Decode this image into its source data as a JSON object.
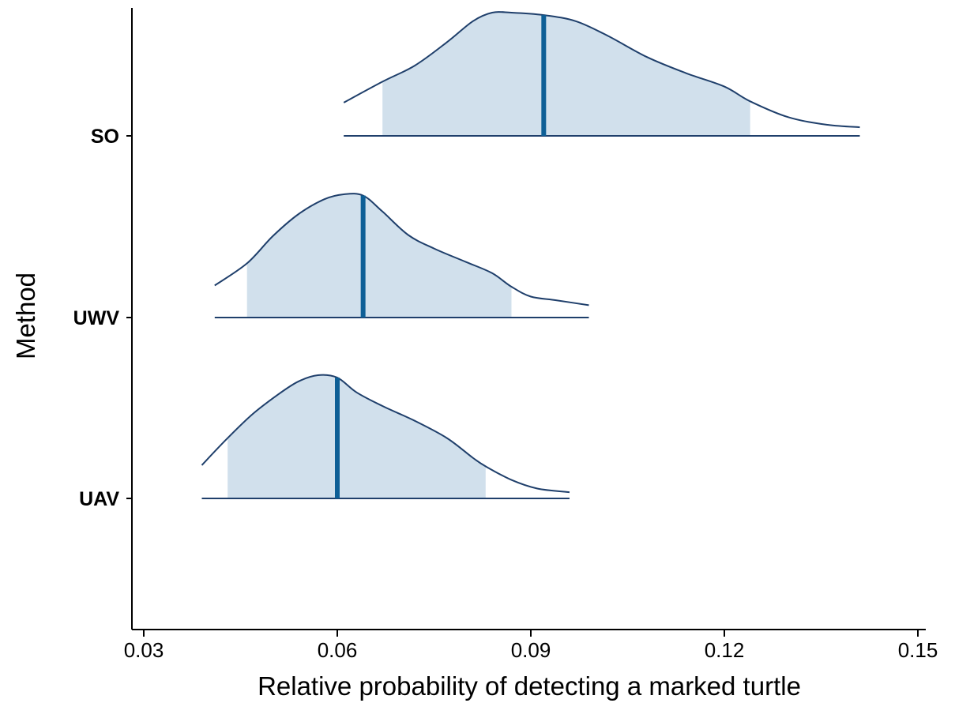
{
  "chart_data": {
    "type": "area",
    "subtype": "density-ridges",
    "xlabel": "Relative probability of detecting a marked turtle",
    "ylabel": "Method",
    "xlim": [
      0.03,
      0.15
    ],
    "x_ticks": [
      0.03,
      0.06,
      0.09,
      0.12,
      0.15
    ],
    "x_tick_labels": [
      "0.03",
      "0.06",
      "0.09",
      "0.12",
      "0.15"
    ],
    "categories": [
      "SO",
      "UWV",
      "UAV"
    ],
    "grid": false,
    "colors": {
      "fill": "#d1e0ec",
      "line": "#1f3f6b",
      "median": "#0e5f96",
      "axis": "#000000"
    },
    "series": [
      {
        "name": "SO",
        "range": [
          0.061,
          0.141
        ],
        "median": 0.092,
        "interval": [
          0.067,
          0.124
        ],
        "density": [
          [
            0.061,
            0.27
          ],
          [
            0.067,
            0.44
          ],
          [
            0.072,
            0.57
          ],
          [
            0.077,
            0.76
          ],
          [
            0.081,
            0.93
          ],
          [
            0.084,
            1.0
          ],
          [
            0.087,
            1.0
          ],
          [
            0.092,
            0.98
          ],
          [
            0.097,
            0.93
          ],
          [
            0.102,
            0.81
          ],
          [
            0.108,
            0.64
          ],
          [
            0.114,
            0.51
          ],
          [
            0.12,
            0.4
          ],
          [
            0.124,
            0.28
          ],
          [
            0.13,
            0.15
          ],
          [
            0.136,
            0.09
          ],
          [
            0.141,
            0.07
          ]
        ]
      },
      {
        "name": "UWV",
        "range": [
          0.041,
          0.099
        ],
        "median": 0.064,
        "interval": [
          0.046,
          0.087
        ],
        "density": [
          [
            0.041,
            0.26
          ],
          [
            0.046,
            0.44
          ],
          [
            0.05,
            0.66
          ],
          [
            0.054,
            0.84
          ],
          [
            0.058,
            0.96
          ],
          [
            0.061,
            1.0
          ],
          [
            0.064,
            0.99
          ],
          [
            0.067,
            0.86
          ],
          [
            0.071,
            0.67
          ],
          [
            0.075,
            0.56
          ],
          [
            0.08,
            0.45
          ],
          [
            0.084,
            0.36
          ],
          [
            0.087,
            0.25
          ],
          [
            0.09,
            0.17
          ],
          [
            0.094,
            0.14
          ],
          [
            0.099,
            0.1
          ]
        ]
      },
      {
        "name": "UAV",
        "range": [
          0.039,
          0.096
        ],
        "median": 0.06,
        "interval": [
          0.043,
          0.083
        ],
        "density": [
          [
            0.039,
            0.27
          ],
          [
            0.043,
            0.49
          ],
          [
            0.047,
            0.69
          ],
          [
            0.051,
            0.85
          ],
          [
            0.054,
            0.95
          ],
          [
            0.057,
            1.0
          ],
          [
            0.06,
            0.98
          ],
          [
            0.063,
            0.86
          ],
          [
            0.067,
            0.75
          ],
          [
            0.072,
            0.63
          ],
          [
            0.077,
            0.49
          ],
          [
            0.081,
            0.33
          ],
          [
            0.083,
            0.26
          ],
          [
            0.087,
            0.15
          ],
          [
            0.091,
            0.08
          ],
          [
            0.096,
            0.05
          ]
        ]
      }
    ]
  }
}
